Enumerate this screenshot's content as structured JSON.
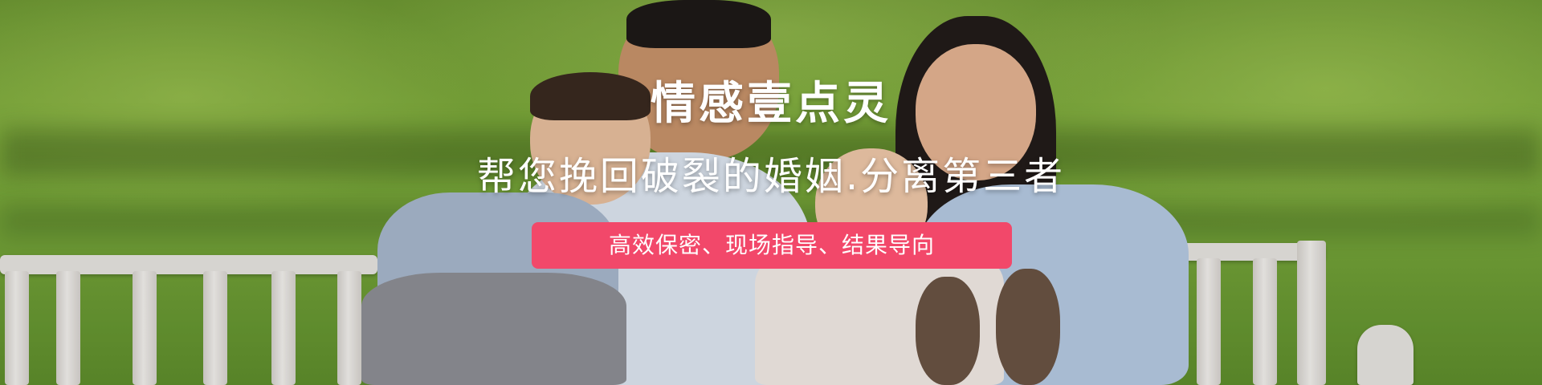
{
  "banner": {
    "title": "情感壹点灵",
    "subtitle": "帮您挽回破裂的婚姻.分离第三者",
    "tagline": "高效保密、现场指导、结果导向"
  },
  "colors": {
    "tagline_bg": "#f2486a",
    "text": "#ffffff",
    "grass": "#7fae3c",
    "bench": "#e9e6e2"
  }
}
